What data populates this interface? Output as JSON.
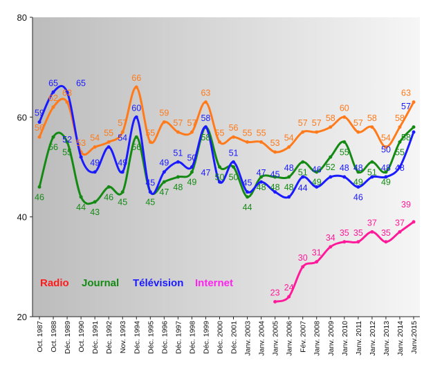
{
  "chart_data": {
    "type": "line",
    "title": "",
    "xlabel": "",
    "ylabel": "",
    "ylim": [
      20,
      80
    ],
    "yticks": [
      20,
      40,
      60,
      80
    ],
    "grid": false,
    "legend_placement": "bottom-left",
    "categories": [
      "Oct. 1987",
      "Oct. 1988",
      "Déc. 1989",
      "Oct. 1990",
      "Déc. 1991",
      "Déc. 1992",
      "Nov. 1993",
      "Déc. 1994",
      "Déc. 1995",
      "Déc. 1996",
      "Déc. 1997",
      "Déc. 1998",
      "Déc. 1999",
      "Déc. 2000",
      "Déc. 2001",
      "Janv. 2003",
      "Janv. 2004",
      "Janv. 2005",
      "Janv. 2006",
      "Fév. 2007",
      "Janv. 2008",
      "Janv. 2009",
      "Janv. 2010",
      "Janv. 2011",
      "Janv. 2012",
      "Janv. 2013",
      "Janv. 2014",
      "Janv.2015"
    ],
    "series": [
      {
        "name": "Radio",
        "legend_color": "#ff1a1a",
        "color": "#ff7a1a",
        "label_pos": "above",
        "values": [
          56,
          62,
          63,
          53,
          54,
          55,
          57,
          66,
          55,
          59,
          57,
          57,
          63,
          55,
          56,
          55,
          55,
          53,
          54,
          57,
          57,
          58,
          60,
          57,
          58,
          54,
          58,
          63
        ]
      },
      {
        "name": "Journal",
        "legend_color": "#148a14",
        "color": "#148a14",
        "label_pos": "below",
        "values": [
          46,
          56,
          55,
          44,
          43,
          46,
          45,
          56,
          45,
          47,
          48,
          49,
          58,
          50,
          50,
          44,
          48,
          48,
          48,
          51,
          49,
          52,
          55,
          49,
          51,
          49,
          55,
          58
        ]
      },
      {
        "name": "Télévision",
        "legend_color": "#1a1aff",
        "color": "#1a1aff",
        "label_pos": "above",
        "values": [
          59,
          65,
          65,
          52,
          49,
          54,
          49,
          60,
          45,
          49,
          51,
          50,
          58,
          47,
          51,
          45,
          47,
          45,
          44,
          48,
          46,
          48,
          48,
          46,
          48,
          48,
          50,
          57
        ]
      },
      {
        "name": "Internet",
        "legend_color": "#ff22ee",
        "color": "#ff1a99",
        "label_pos": "above",
        "values": [
          null,
          null,
          null,
          null,
          null,
          null,
          null,
          null,
          null,
          null,
          null,
          null,
          null,
          null,
          null,
          null,
          null,
          23,
          24,
          30,
          31,
          34,
          35,
          35,
          37,
          35,
          37,
          39
        ]
      }
    ],
    "background": {
      "from": "#bcbcbc",
      "to": "#f6f6f6"
    }
  }
}
